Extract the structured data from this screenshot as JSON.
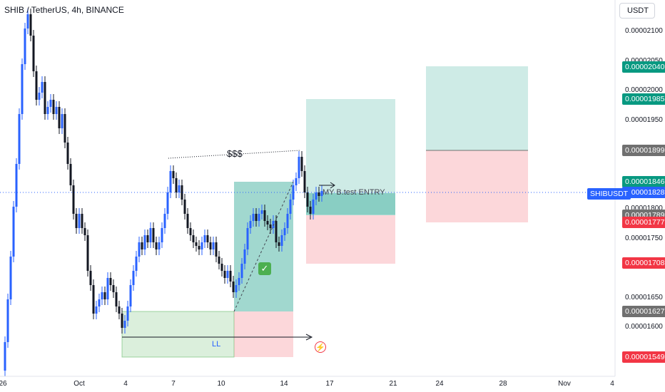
{
  "header": {
    "symbol_title": "SHIB / TetherUS, 4h, BINANCE",
    "currency_button": "USDT"
  },
  "price_axis": {
    "ticks": [
      "0.00002100",
      "0.00002050",
      "0.00002000",
      "0.00001950",
      "0.00001800",
      "0.00001750",
      "0.00001650",
      "0.00001600"
    ],
    "badges": [
      {
        "text": "0.00002040",
        "color": "#089981",
        "price": 2.04e-05
      },
      {
        "text": "0.00001985",
        "color": "#089981",
        "price": 1.985e-05
      },
      {
        "text": "0.00001899",
        "color": "#707070",
        "price": 1.899e-05
      },
      {
        "text": "0.00001846",
        "color": "#089981",
        "price": 1.846e-05
      },
      {
        "text": "0.00001828",
        "color": "#2962ff",
        "price": 1.828e-05
      },
      {
        "text": "0.00001789",
        "color": "#707070",
        "price": 1.789e-05
      },
      {
        "text": "0.00001777",
        "color": "#f23645",
        "price": 1.777e-05
      },
      {
        "text": "0.00001708",
        "color": "#f23645",
        "price": 1.708e-05
      },
      {
        "text": "0.00001627",
        "color": "#707070",
        "price": 1.627e-05
      },
      {
        "text": "0.00001549",
        "color": "#f23645",
        "price": 1.549e-05
      }
    ],
    "symbol_badge": "SHIBUSDT"
  },
  "time_axis": {
    "ticks": [
      "26",
      "Oct",
      "4",
      "7",
      "10",
      "14",
      "17",
      "21",
      "24",
      "28",
      "Nov",
      "4"
    ]
  },
  "annotations": {
    "entry_label": "MY B.test ENTRY",
    "dollars": "$$$",
    "ll": "LL",
    "check": "✓"
  },
  "colors": {
    "up": "#2962ff",
    "down": "#131722",
    "profit_zone": "#089981",
    "loss_zone": "#f23645",
    "last_price": "#2962ff"
  }
}
